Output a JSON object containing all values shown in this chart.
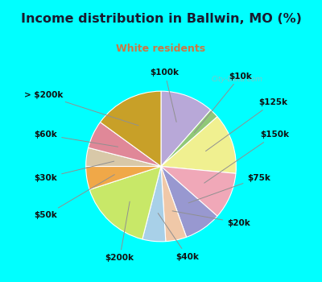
{
  "title": "Income distribution in Ballwin, MO (%)",
  "subtitle": "White residents",
  "title_color": "#1a1a2e",
  "subtitle_color": "#cc7744",
  "bg_color": "#00ffff",
  "box_bg_left": "#c8ede0",
  "box_bg_right": "#d8f0f0",
  "watermark": "City-Data.com",
  "labels": [
    "$100k",
    "$10k",
    "$125k",
    "$150k",
    "$75k",
    "$20k",
    "$40k",
    "$200k",
    "$50k",
    "$30k",
    "$60k",
    "> $200k"
  ],
  "values": [
    11.5,
    2.0,
    13.0,
    10.0,
    8.0,
    4.5,
    5.0,
    16.0,
    5.0,
    4.0,
    6.0,
    15.0
  ],
  "colors": [
    "#b8a8d8",
    "#90c878",
    "#f0f090",
    "#f0a8b8",
    "#9898d0",
    "#f0c8a8",
    "#a8d0e8",
    "#c8e868",
    "#f0a848",
    "#d8c8a8",
    "#e08898",
    "#c8a028"
  ],
  "startangle": 90
}
